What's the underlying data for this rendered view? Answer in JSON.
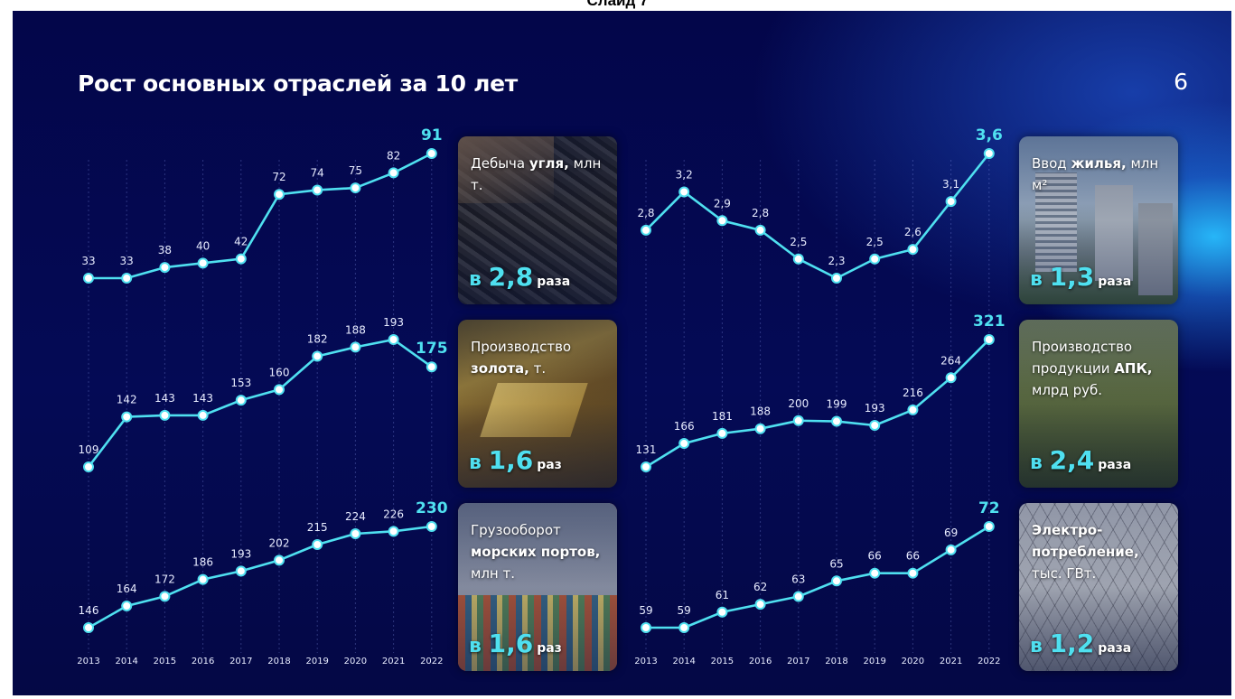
{
  "caption": "Слайд 7",
  "slide": {
    "title": "Рост основных отраслей за 10 лет",
    "page_number": "6"
  },
  "chart_data": [
    {
      "type": "line",
      "categories": [
        "2013",
        "2014",
        "2015",
        "2016",
        "2017",
        "2018",
        "2019",
        "2020",
        "2021",
        "2022"
      ],
      "values": [
        33,
        33,
        38,
        40,
        42,
        72,
        74,
        75,
        82,
        91
      ],
      "labels": [
        "33",
        "33",
        "38",
        "40",
        "42",
        "72",
        "74",
        "75",
        "82",
        "91"
      ],
      "card": {
        "label_pre": "Дебыча ",
        "label_bold": "угля,",
        "label_post": " млн т.",
        "mult_prefix": "в ",
        "mult_value": "2,8",
        "mult_unit": "раза"
      }
    },
    {
      "type": "line",
      "categories": [
        "2013",
        "2014",
        "2015",
        "2016",
        "2017",
        "2018",
        "2019",
        "2020",
        "2021",
        "2022"
      ],
      "values": [
        109,
        142,
        143,
        143,
        153,
        160,
        182,
        188,
        193,
        175
      ],
      "labels": [
        "109",
        "142",
        "143",
        "143",
        "153",
        "160",
        "182",
        "188",
        "193",
        "175"
      ],
      "card": {
        "label_pre": "Производство ",
        "label_bold": "золота,",
        "label_post": " т.",
        "mult_prefix": "в ",
        "mult_value": "1,6",
        "mult_unit": "раз"
      }
    },
    {
      "type": "line",
      "categories": [
        "2013",
        "2014",
        "2015",
        "2016",
        "2017",
        "2018",
        "2019",
        "2020",
        "2021",
        "2022"
      ],
      "values": [
        146,
        164,
        172,
        186,
        193,
        202,
        215,
        224,
        226,
        230
      ],
      "labels": [
        "146",
        "164",
        "172",
        "186",
        "193",
        "202",
        "215",
        "224",
        "226",
        "230"
      ],
      "card": {
        "label_pre": "Грузооборот ",
        "label_bold": "морских портов,",
        "label_post": " млн т.",
        "mult_prefix": "в ",
        "mult_value": "1,6",
        "mult_unit": "раз"
      }
    },
    {
      "type": "line",
      "categories": [
        "2013",
        "2014",
        "2015",
        "2016",
        "2017",
        "2018",
        "2019",
        "2020",
        "2021",
        "2022"
      ],
      "values": [
        2.8,
        3.2,
        2.9,
        2.8,
        2.5,
        2.3,
        2.5,
        2.6,
        3.1,
        3.6
      ],
      "labels": [
        "2,8",
        "3,2",
        "2,9",
        "2,8",
        "2,5",
        "2,3",
        "2,5",
        "2,6",
        "3,1",
        "3,6"
      ],
      "card": {
        "label_pre": "Ввод ",
        "label_bold": "жилья,",
        "label_post": " млн м²",
        "mult_prefix": "в ",
        "mult_value": "1,3",
        "mult_unit": "раза"
      }
    },
    {
      "type": "line",
      "categories": [
        "2013",
        "2014",
        "2015",
        "2016",
        "2017",
        "2018",
        "2019",
        "2020",
        "2021",
        "2022"
      ],
      "values": [
        131,
        166,
        181,
        188,
        200,
        199,
        193,
        216,
        264,
        321
      ],
      "labels": [
        "131",
        "166",
        "181",
        "188",
        "200",
        "199",
        "193",
        "216",
        "264",
        "321"
      ],
      "card": {
        "label_pre": "Производство продукции ",
        "label_bold": "АПК,",
        "label_post": " млрд руб.",
        "mult_prefix": "в ",
        "mult_value": "2,4",
        "mult_unit": "раза"
      }
    },
    {
      "type": "line",
      "categories": [
        "2013",
        "2014",
        "2015",
        "2016",
        "2017",
        "2018",
        "2019",
        "2020",
        "2021",
        "2022"
      ],
      "values": [
        59,
        59,
        61,
        62,
        63,
        65,
        66,
        66,
        69,
        72
      ],
      "labels": [
        "59",
        "59",
        "61",
        "62",
        "63",
        "65",
        "66",
        "66",
        "69",
        "72"
      ],
      "card": {
        "label_pre": "",
        "label_bold": "Электро-потребление,",
        "label_post": " тыс. ГВт.",
        "mult_prefix": "в ",
        "mult_value": "1,2",
        "mult_unit": "раза"
      }
    }
  ],
  "colors": {
    "line": "#4fe0f0",
    "label": "#e8ecff",
    "background": "#040a55"
  }
}
